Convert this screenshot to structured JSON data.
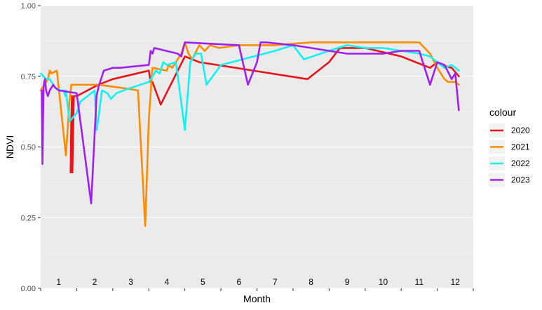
{
  "chart_data": {
    "type": "line",
    "xlabel": "Month",
    "ylabel": "NDVI",
    "ylim": [
      0,
      1
    ],
    "yticks": [
      "0.00",
      "0.25",
      "0.50",
      "0.75",
      "1.00"
    ],
    "xlim": [
      0,
      12
    ],
    "month_labels": [
      "1",
      "2",
      "3",
      "4",
      "5",
      "6",
      "7",
      "8",
      "9",
      "10",
      "11",
      "12"
    ],
    "grid": true,
    "legend": {
      "title": "colour",
      "position": "right"
    },
    "series": [
      {
        "name": "2020",
        "color": "#e8141a",
        "x": [
          0.83,
          0.85,
          0.87,
          0.88,
          0.92,
          1.0,
          1.6,
          2.0,
          3.0,
          3.05,
          3.1,
          3.33,
          4.0,
          4.4,
          7.4,
          8.0,
          8.3,
          9.0,
          10.0,
          10.8,
          11.0,
          11.1,
          11.4,
          11.6
        ],
        "y": [
          0.41,
          0.6,
          0.68,
          0.41,
          0.68,
          0.68,
          0.72,
          0.74,
          0.77,
          0.73,
          0.73,
          0.65,
          0.82,
          0.8,
          0.74,
          0.8,
          0.85,
          0.85,
          0.82,
          0.78,
          0.8,
          0.79,
          0.78,
          0.75
        ]
      },
      {
        "name": "2021",
        "color": "#ff8c00",
        "x": [
          0.0,
          0.2,
          0.25,
          0.3,
          0.45,
          0.7,
          0.8,
          0.85,
          1.2,
          1.3,
          1.6,
          2.2,
          2.7,
          2.9,
          3.0,
          3.1,
          3.5,
          3.55,
          3.65,
          3.9,
          4.0,
          4.1,
          4.2,
          4.4,
          4.55,
          4.7,
          4.95,
          5.5,
          6.5,
          7.5,
          8.5,
          9.5,
          10.0,
          10.5,
          10.8,
          11.0,
          11.2,
          11.3,
          11.5,
          11.6
        ],
        "y": [
          0.7,
          0.74,
          0.77,
          0.76,
          0.77,
          0.47,
          0.66,
          0.72,
          0.72,
          0.72,
          0.72,
          0.71,
          0.7,
          0.22,
          0.6,
          0.78,
          0.77,
          0.79,
          0.78,
          0.83,
          0.87,
          0.83,
          0.81,
          0.86,
          0.84,
          0.86,
          0.85,
          0.86,
          0.86,
          0.87,
          0.87,
          0.87,
          0.87,
          0.87,
          0.83,
          0.78,
          0.74,
          0.73,
          0.73,
          0.72
        ]
      },
      {
        "name": "2022",
        "color": "#12f2f2",
        "x": [
          0.0,
          0.15,
          0.25,
          0.4,
          0.55,
          0.65,
          0.68,
          0.7,
          0.8,
          1.0,
          1.1,
          1.5,
          1.55,
          1.6,
          1.7,
          1.85,
          1.95,
          2.1,
          2.3,
          3.0,
          3.2,
          3.3,
          3.4,
          3.5,
          3.75,
          4.0,
          4.15,
          4.3,
          4.45,
          4.6,
          5.0,
          6.5,
          7.0,
          7.3,
          8.0,
          8.5,
          9.0,
          9.5,
          10.0,
          10.5,
          10.8,
          11.0,
          11.2,
          11.4,
          11.6
        ],
        "y": [
          0.76,
          0.74,
          0.74,
          0.71,
          0.7,
          0.7,
          0.68,
          0.7,
          0.59,
          0.62,
          0.66,
          0.7,
          0.56,
          0.6,
          0.7,
          0.69,
          0.67,
          0.69,
          0.7,
          0.73,
          0.77,
          0.76,
          0.8,
          0.79,
          0.8,
          0.56,
          0.8,
          0.83,
          0.83,
          0.72,
          0.79,
          0.84,
          0.86,
          0.81,
          0.84,
          0.86,
          0.85,
          0.85,
          0.84,
          0.83,
          0.82,
          0.8,
          0.78,
          0.79,
          0.77
        ]
      },
      {
        "name": "2023",
        "color": "#a020f0",
        "x": [
          0.03,
          0.05,
          0.08,
          0.1,
          0.12,
          0.15,
          0.2,
          0.25,
          0.3,
          0.35,
          0.4,
          0.5,
          1.0,
          1.4,
          1.55,
          1.6,
          1.65,
          1.75,
          2.0,
          2.2,
          3.0,
          3.05,
          3.1,
          3.15,
          3.8,
          3.9,
          4.0,
          5.5,
          5.75,
          6.0,
          6.1,
          6.25,
          7.0,
          7.5,
          8.0,
          8.5,
          9.0,
          9.5,
          10.0,
          10.5,
          10.6,
          10.8,
          11.0,
          11.2,
          11.4,
          11.5,
          11.6
        ],
        "y": [
          0.7,
          0.44,
          0.71,
          0.73,
          0.74,
          0.7,
          0.68,
          0.7,
          0.71,
          0.72,
          0.71,
          0.7,
          0.69,
          0.3,
          0.68,
          0.71,
          0.73,
          0.77,
          0.78,
          0.78,
          0.79,
          0.84,
          0.83,
          0.85,
          0.83,
          0.82,
          0.87,
          0.86,
          0.72,
          0.8,
          0.87,
          0.87,
          0.86,
          0.85,
          0.84,
          0.83,
          0.83,
          0.83,
          0.84,
          0.84,
          0.8,
          0.72,
          0.8,
          0.79,
          0.74,
          0.76,
          0.63
        ]
      }
    ]
  }
}
